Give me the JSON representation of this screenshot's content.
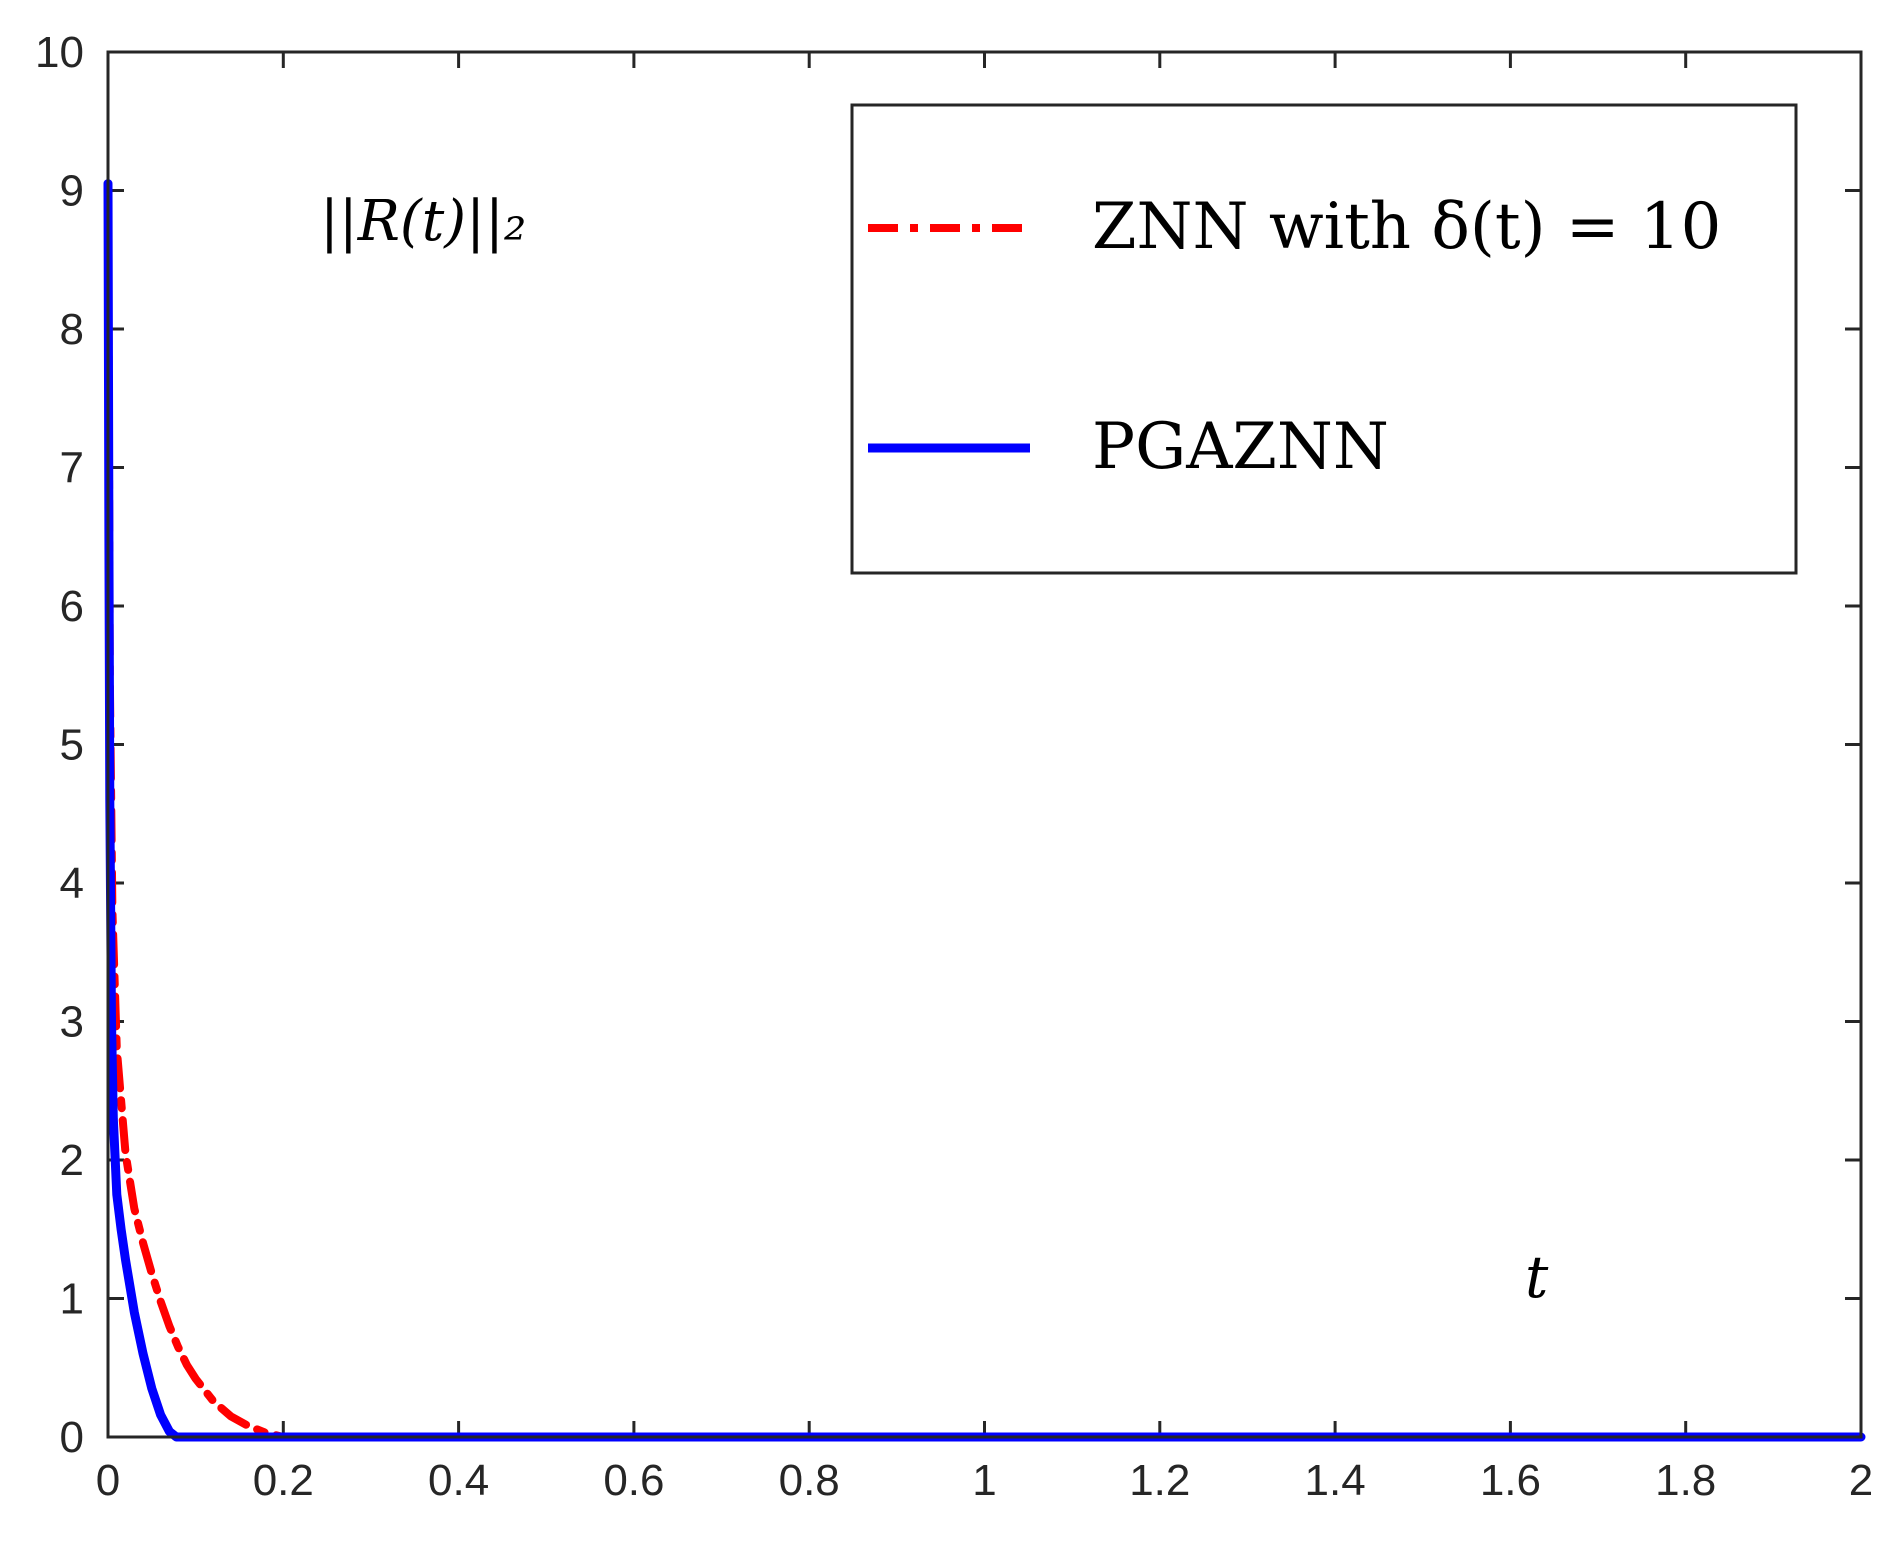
{
  "chart_data": {
    "type": "line",
    "title": "",
    "xlabel": "t",
    "ylabel": "",
    "annotation": "||R(t)||₂",
    "xlim": [
      0,
      2
    ],
    "ylim": [
      0,
      10
    ],
    "x_ticks": [
      0,
      0.2,
      0.4,
      0.6,
      0.8,
      1,
      1.2,
      1.4,
      1.6,
      1.8,
      2
    ],
    "x_tick_labels": [
      "0",
      "0.2",
      "0.4",
      "0.6",
      "0.8",
      "1",
      "1.2",
      "1.4",
      "1.6",
      "1.8",
      "2"
    ],
    "y_ticks": [
      0,
      1,
      2,
      3,
      4,
      5,
      6,
      7,
      8,
      9,
      10
    ],
    "y_tick_labels": [
      "0",
      "1",
      "2",
      "3",
      "4",
      "5",
      "6",
      "7",
      "8",
      "9",
      "10"
    ],
    "grid": false,
    "legend_position": "top-right",
    "series": [
      {
        "name": "ZNN with δ(t) = 10",
        "color": "#ff0000",
        "style": "dash-dot",
        "x": [
          0,
          0.002,
          0.005,
          0.01,
          0.02,
          0.03,
          0.04,
          0.05,
          0.06,
          0.07,
          0.08,
          0.09,
          0.1,
          0.12,
          0.14,
          0.16,
          0.18,
          0.2,
          0.3,
          0.5,
          1,
          1.5,
          2
        ],
        "y": [
          9.0,
          5.5,
          3.8,
          2.8,
          2.05,
          1.65,
          1.4,
          1.18,
          0.98,
          0.8,
          0.65,
          0.52,
          0.42,
          0.26,
          0.15,
          0.08,
          0.03,
          0.0,
          0,
          0,
          0,
          0,
          0
        ]
      },
      {
        "name": "PGAZNN",
        "color": "#0000ff",
        "style": "solid",
        "x": [
          0,
          0.001,
          0.002,
          0.004,
          0.006,
          0.01,
          0.015,
          0.02,
          0.03,
          0.04,
          0.05,
          0.06,
          0.07,
          0.078,
          0.1,
          0.5,
          1,
          1.5,
          2
        ],
        "y": [
          9.05,
          6.5,
          4.6,
          3.0,
          2.3,
          1.75,
          1.5,
          1.28,
          0.9,
          0.6,
          0.35,
          0.16,
          0.04,
          0.0,
          0,
          0,
          0,
          0,
          0
        ]
      }
    ]
  }
}
